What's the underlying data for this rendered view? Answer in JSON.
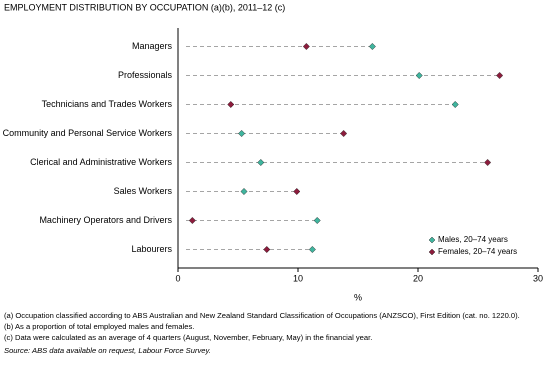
{
  "chart_data": {
    "type": "dot",
    "title": "EMPLOYMENT DISTRIBUTION BY OCCUPATION (a)(b), 2011–12 (c)",
    "x_label": "%",
    "categories": [
      "Managers",
      "Professionals",
      "Technicians and Trades Workers",
      "Community and Personal Service Workers",
      "Clerical and Administrative Workers",
      "Sales Workers",
      "Machinery Operators and Drivers",
      "Labourers"
    ],
    "series": [
      {
        "name": "Males, 20–74 years",
        "color": "#3fb59e",
        "values": [
          16.2,
          20.1,
          23.1,
          5.3,
          6.9,
          5.5,
          11.6,
          11.2
        ]
      },
      {
        "name": "Females, 20–74 years",
        "color": "#8c1c3c",
        "values": [
          10.7,
          26.8,
          4.4,
          13.8,
          25.8,
          9.9,
          1.2,
          7.4
        ]
      }
    ],
    "xlim": [
      0,
      30
    ],
    "xticks": [
      0,
      10,
      20,
      30
    ],
    "legend": "lower right",
    "footnotes": [
      "(a) Occupation classified according to ABS Australian and New Zealand Standard Classification of Occupations (ANZSCO), First Edition (cat. no. 1220.0).",
      "(b) As a proportion of total employed males and females.",
      "(c) Data were calculated as an average of 4 quarters (August, November, February, May) in the financial year."
    ],
    "source": "Source: ABS data available on request, Labour Force Survey."
  }
}
